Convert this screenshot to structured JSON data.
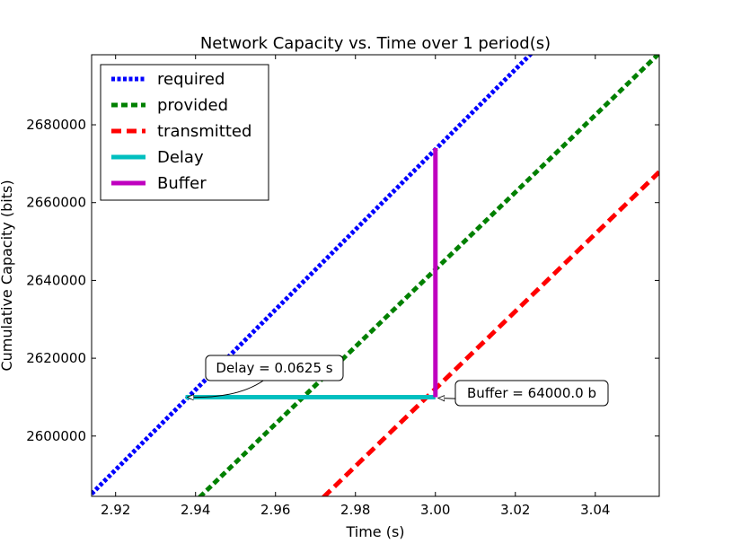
{
  "chart_data": {
    "type": "line",
    "title": "Network Capacity vs. Time over 1 period(s)",
    "xlabel": "Time (s)",
    "ylabel": "Cumulative Capacity (bits)",
    "xlim": [
      2.914,
      3.056
    ],
    "ylim": [
      2584500,
      2698000
    ],
    "xticks": [
      2.92,
      2.94,
      2.96,
      2.98,
      3.0,
      3.02,
      3.04
    ],
    "xtick_labels": [
      "2.92",
      "2.94",
      "2.96",
      "2.98",
      "3.00",
      "3.02",
      "3.04"
    ],
    "yticks": [
      2600000,
      2620000,
      2640000,
      2660000,
      2680000
    ],
    "ytick_labels": [
      "2600000",
      "2620000",
      "2640000",
      "2660000",
      "2680000"
    ],
    "grid": false,
    "legend_position": "top-left",
    "series": [
      {
        "name": "required",
        "color": "#0000ff",
        "style": "dotted",
        "points": [
          [
            2.914,
            2585150
          ],
          [
            3.025,
            2699360
          ]
        ]
      },
      {
        "name": "provided",
        "color": "#008000",
        "style": "dashed-short",
        "points": [
          [
            2.941,
            2584280
          ],
          [
            3.056,
            2698380
          ]
        ]
      },
      {
        "name": "transmitted",
        "color": "#ff0000",
        "style": "dashed",
        "points": [
          [
            2.972,
            2584280
          ],
          [
            3.056,
            2667880
          ]
        ]
      },
      {
        "name": "Delay",
        "color": "#00bfbf",
        "style": "solid",
        "points": [
          [
            2.9375,
            2610000
          ],
          [
            3.0,
            2610000
          ]
        ]
      },
      {
        "name": "Buffer",
        "color": "#bf00bf",
        "style": "solid",
        "points": [
          [
            3.0,
            2610000
          ],
          [
            3.0,
            2674000
          ]
        ]
      }
    ],
    "annotations": [
      {
        "text": "Delay = 0.0625 s",
        "target": [
          2.9375,
          2610000
        ]
      },
      {
        "text": "Buffer = 64000.0 b",
        "target": [
          3.0,
          2610000
        ]
      }
    ]
  }
}
